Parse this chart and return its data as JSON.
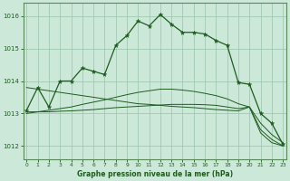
{
  "background_color": "#cce8d8",
  "plot_bg_color": "#cce8d8",
  "line_color": "#1e5c1e",
  "grid_color": "#99c4aa",
  "xlabel": "Graphe pression niveau de la mer (hPa)",
  "ylim": [
    1011.6,
    1016.4
  ],
  "yticks": [
    1012,
    1013,
    1014,
    1015,
    1016
  ],
  "xticks": [
    0,
    1,
    2,
    3,
    4,
    5,
    6,
    7,
    8,
    9,
    10,
    11,
    12,
    13,
    14,
    15,
    16,
    17,
    18,
    19,
    20,
    21,
    22,
    23
  ],
  "series": {
    "main": [
      1013.1,
      1013.8,
      1013.2,
      1014.0,
      1014.0,
      1014.4,
      1014.3,
      1014.2,
      1015.1,
      1015.4,
      1015.85,
      1015.7,
      1016.05,
      1015.75,
      1015.5,
      1015.5,
      1015.45,
      1015.25,
      1015.1,
      1013.95,
      1013.9,
      1013.0,
      1012.7,
      1012.05
    ],
    "line_diag": [
      1013.8,
      1013.75,
      1013.7,
      1013.65,
      1013.6,
      1013.55,
      1013.5,
      1013.45,
      1013.4,
      1013.35,
      1013.3,
      1013.28,
      1013.25,
      1013.22,
      1013.2,
      1013.18,
      1013.15,
      1013.12,
      1013.1,
      1013.08,
      1013.2,
      1012.5,
      1012.2,
      1012.0
    ],
    "line_flat1": [
      1013.05,
      1013.05,
      1013.05,
      1013.07,
      1013.08,
      1013.1,
      1013.12,
      1013.15,
      1013.18,
      1013.2,
      1013.22,
      1013.24,
      1013.26,
      1013.28,
      1013.28,
      1013.28,
      1013.27,
      1013.25,
      1013.2,
      1013.15,
      1013.2,
      1012.4,
      1012.1,
      1012.0
    ],
    "line_up": [
      1013.0,
      1013.05,
      1013.1,
      1013.15,
      1013.2,
      1013.28,
      1013.35,
      1013.42,
      1013.5,
      1013.58,
      1013.65,
      1013.7,
      1013.75,
      1013.75,
      1013.72,
      1013.68,
      1013.62,
      1013.55,
      1013.45,
      1013.3,
      1013.2,
      1012.7,
      1012.35,
      1012.1
    ]
  }
}
